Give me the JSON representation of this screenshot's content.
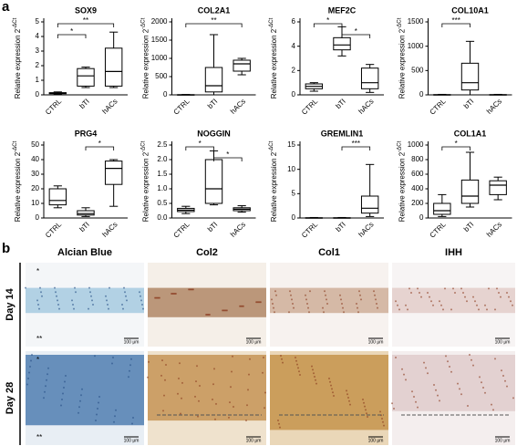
{
  "panel_a_label": "a",
  "panel_b_label": "b",
  "chart_data": [
    {
      "type": "box",
      "title": "SOX9",
      "y_label": "Relative expression 2",
      "y_label_sup": "-ΔCt",
      "categories": [
        "CTRL",
        "bTI",
        "hACs"
      ],
      "ylim": [
        0,
        5
      ],
      "yticks": [
        0,
        1,
        2,
        3,
        4,
        5
      ],
      "boxes": [
        {
          "min": 0.05,
          "q1": 0.08,
          "median": 0.1,
          "q3": 0.15,
          "max": 0.2
        },
        {
          "min": 0.5,
          "q1": 0.6,
          "median": 1.3,
          "q3": 1.8,
          "max": 1.9
        },
        {
          "min": 0.5,
          "q1": 0.6,
          "median": 1.6,
          "q3": 3.2,
          "max": 4.3
        }
      ],
      "significance": [
        {
          "from": 0,
          "to": 2,
          "label": "**"
        },
        {
          "from": 0,
          "to": 1,
          "label": "*"
        }
      ]
    },
    {
      "type": "box",
      "title": "COL2A1",
      "y_label": "Relative expression 2",
      "y_label_sup": "-ΔCt",
      "categories": [
        "CTRL",
        "bTI",
        "hACs"
      ],
      "ylim": [
        0,
        2000
      ],
      "yticks": [
        0,
        500,
        1000,
        1500,
        2000
      ],
      "boxes": [
        {
          "min": 0,
          "q1": 0,
          "median": 0,
          "q3": 5,
          "max": 10
        },
        {
          "min": 0,
          "q1": 80,
          "median": 250,
          "q3": 750,
          "max": 1650
        },
        {
          "min": 550,
          "q1": 650,
          "median": 850,
          "q3": 950,
          "max": 1000
        }
      ],
      "significance": [
        {
          "from": 0,
          "to": 2,
          "label": "**"
        }
      ]
    },
    {
      "type": "box",
      "title": "MEF2C",
      "y_label": "Relative expression 2",
      "y_label_sup": "-ΔCt",
      "categories": [
        "CTRL",
        "bTI",
        "hACs"
      ],
      "ylim": [
        0,
        6
      ],
      "yticks": [
        0,
        2,
        4,
        6
      ],
      "boxes": [
        {
          "min": 0.3,
          "q1": 0.5,
          "median": 0.7,
          "q3": 0.9,
          "max": 1.0
        },
        {
          "min": 3.2,
          "q1": 3.7,
          "median": 4.1,
          "q3": 4.7,
          "max": 5.6
        },
        {
          "min": 0.2,
          "q1": 0.5,
          "median": 1.0,
          "q3": 2.2,
          "max": 2.5
        }
      ],
      "significance": [
        {
          "from": 0,
          "to": 1,
          "label": "*"
        },
        {
          "from": 1,
          "to": 2,
          "label": "*"
        }
      ]
    },
    {
      "type": "box",
      "title": "COL10A1",
      "y_label": "Relative expression 2",
      "y_label_sup": "-ΔCt",
      "categories": [
        "CTRL",
        "bTI",
        "hACs"
      ],
      "ylim": [
        0,
        1500
      ],
      "yticks": [
        0,
        500,
        1000,
        1500
      ],
      "boxes": [
        {
          "min": 0,
          "q1": 0,
          "median": 0,
          "q3": 5,
          "max": 10
        },
        {
          "min": 0,
          "q1": 100,
          "median": 250,
          "q3": 650,
          "max": 1100
        },
        {
          "min": 0,
          "q1": 0,
          "median": 0,
          "q3": 5,
          "max": 10
        }
      ],
      "significance": [
        {
          "from": 0,
          "to": 1,
          "label": "***"
        }
      ]
    },
    {
      "type": "box",
      "title": "PRG4",
      "y_label": "Relative expression 2",
      "y_label_sup": "-ΔCt",
      "categories": [
        "CTRL",
        "bTI",
        "hACs"
      ],
      "ylim": [
        0,
        50
      ],
      "yticks": [
        0,
        10,
        20,
        30,
        40,
        50
      ],
      "boxes": [
        {
          "min": 7,
          "q1": 9,
          "median": 12,
          "q3": 20,
          "max": 22
        },
        {
          "min": 1,
          "q1": 2,
          "median": 3,
          "q3": 5,
          "max": 7
        },
        {
          "min": 8,
          "q1": 23,
          "median": 34,
          "q3": 39,
          "max": 40
        }
      ],
      "significance": [
        {
          "from": 1,
          "to": 2,
          "label": "*"
        }
      ]
    },
    {
      "type": "box",
      "title": "NOGGIN",
      "y_label": "Relative expression 2",
      "y_label_sup": "-ΔCt",
      "categories": [
        "CTRL",
        "bTI",
        "hACs"
      ],
      "ylim": [
        0,
        2.5
      ],
      "yticks": [
        {
          "value": 0,
          "label": "0.0"
        },
        0.5,
        {
          "value": 1,
          "label": "1.0"
        },
        1.5,
        {
          "value": 2,
          "label": "2.0"
        },
        2.5
      ],
      "boxes": [
        {
          "min": 0.15,
          "q1": 0.22,
          "median": 0.27,
          "q3": 0.33,
          "max": 0.4
        },
        {
          "min": 0.45,
          "q1": 0.5,
          "median": 1.0,
          "q3": 2.0,
          "max": 2.3
        },
        {
          "min": 0.2,
          "q1": 0.25,
          "median": 0.3,
          "q3": 0.35,
          "max": 0.42
        }
      ],
      "significance": [
        {
          "from": 0,
          "to": 1,
          "label": "*"
        },
        {
          "from": 1,
          "to": 2,
          "label": "*"
        }
      ]
    },
    {
      "type": "box",
      "title": "GREMLIN1",
      "y_label": "Relative expression 2",
      "y_label_sup": "-ΔCt",
      "categories": [
        "CTRL",
        "bTI",
        "hACs"
      ],
      "ylim": [
        0,
        15
      ],
      "yticks": [
        0,
        5,
        10,
        15
      ],
      "boxes": [
        {
          "min": 0,
          "q1": 0,
          "median": 0,
          "q3": 0.05,
          "max": 0.1
        },
        {
          "min": 0,
          "q1": 0,
          "median": 0,
          "q3": 0.05,
          "max": 0.1
        },
        {
          "min": 0.3,
          "q1": 1,
          "median": 2,
          "q3": 4.5,
          "max": 11
        }
      ],
      "significance": [
        {
          "from": 1,
          "to": 2,
          "label": "***"
        }
      ]
    },
    {
      "type": "box",
      "title": "COL1A1",
      "y_label": "Relative expression 2",
      "y_label_sup": "-ΔCt",
      "categories": [
        "CTRL",
        "bTI",
        "hACs"
      ],
      "ylim": [
        0,
        1000
      ],
      "yticks": [
        0,
        200,
        400,
        600,
        800,
        1000
      ],
      "boxes": [
        {
          "min": 20,
          "q1": 50,
          "median": 100,
          "q3": 200,
          "max": 320
        },
        {
          "min": 150,
          "q1": 200,
          "median": 300,
          "q3": 520,
          "max": 900
        },
        {
          "min": 250,
          "q1": 320,
          "median": 450,
          "q3": 510,
          "max": 560
        }
      ],
      "significance": [
        {
          "from": 0,
          "to": 1,
          "label": "*"
        }
      ]
    }
  ],
  "panel_b": {
    "columns": [
      "Alcian Blue",
      "Col2",
      "Col1",
      "IHH"
    ],
    "rows": [
      {
        "label": "Day 14",
        "asterisks": [
          "*",
          "**"
        ],
        "scales": [
          "100 μm",
          "100 μm",
          "100 μm",
          "100 μm"
        ]
      },
      {
        "label": "Day 28",
        "asterisks": [
          "*",
          "**"
        ],
        "scales": [
          "100 μm",
          "100 μm",
          "100 μm",
          "100 μm"
        ]
      }
    ]
  }
}
